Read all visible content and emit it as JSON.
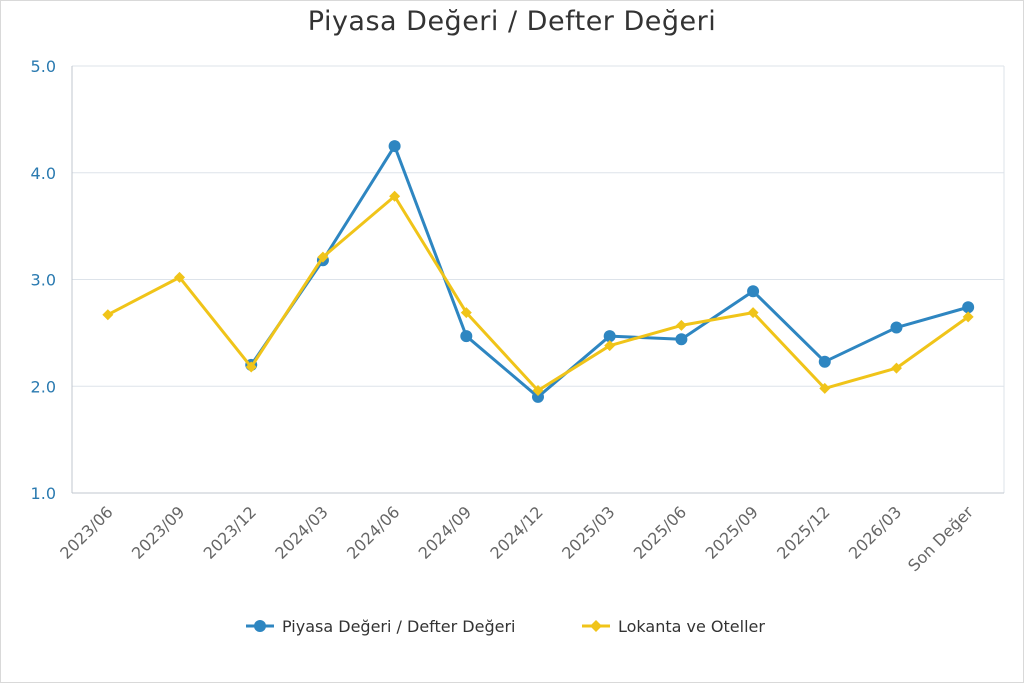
{
  "chart_data": {
    "type": "line",
    "title": "Piyasa Değeri / Defter Değeri",
    "categories": [
      "2023/06",
      "2023/09",
      "2023/12",
      "2024/03",
      "2024/06",
      "2024/09",
      "2024/12",
      "2025/03",
      "2025/06",
      "2025/09",
      "2025/12",
      "2026/03",
      "Son Değer"
    ],
    "ylim": [
      1.0,
      5.0
    ],
    "yticks": [
      "1.0",
      "2.0",
      "3.0",
      "4.0",
      "5.0"
    ],
    "grid": true,
    "legend_position": "bottom",
    "series": [
      {
        "name": "Piyasa Değeri / Defter Değeri",
        "color": "#2e86c1",
        "marker": "circle",
        "values": [
          null,
          null,
          2.2,
          3.18,
          4.25,
          2.47,
          1.9,
          2.47,
          2.44,
          2.89,
          2.23,
          2.55,
          2.74
        ]
      },
      {
        "name": "Lokanta ve Oteller",
        "color": "#f0c419",
        "marker": "diamond",
        "values": [
          2.67,
          3.02,
          2.18,
          3.21,
          3.78,
          2.69,
          1.96,
          2.38,
          2.57,
          2.69,
          1.98,
          2.17,
          2.65
        ]
      }
    ]
  }
}
